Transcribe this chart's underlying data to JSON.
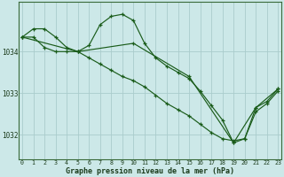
{
  "title": "Graphe pression niveau de la mer (hPa)",
  "bg_color": "#cce8e8",
  "grid_color": "#aacccc",
  "line_color": "#1a5c1a",
  "x_ticks": [
    0,
    1,
    2,
    3,
    4,
    5,
    6,
    7,
    8,
    9,
    10,
    11,
    12,
    13,
    14,
    15,
    16,
    17,
    18,
    19,
    20,
    21,
    22,
    23
  ],
  "y_ticks": [
    1032,
    1033,
    1034
  ],
  "ylim": [
    1031.4,
    1035.2
  ],
  "xlim": [
    -0.3,
    23.3
  ],
  "series": [
    {
      "x": [
        0,
        1,
        2,
        3,
        4,
        5,
        6,
        7,
        8,
        9,
        10,
        11,
        12,
        13,
        14,
        15,
        16,
        17,
        18,
        19,
        20,
        21,
        22,
        23
      ],
      "y": [
        1034.35,
        1034.55,
        1034.55,
        1034.35,
        1034.1,
        1034.0,
        1034.15,
        1034.65,
        1034.85,
        1034.9,
        1034.75,
        1034.2,
        1033.85,
        1033.65,
        1033.5,
        1033.35,
        1033.05,
        1032.7,
        1032.35,
        1031.8,
        1031.9,
        1032.65,
        1032.8,
        1033.1
      ]
    },
    {
      "x": [
        0,
        1,
        2,
        3,
        4,
        5,
        6,
        7,
        8,
        9,
        10,
        11,
        12,
        13,
        14,
        15,
        16,
        17,
        18,
        19,
        20,
        21,
        22,
        23
      ],
      "y": [
        1034.35,
        1034.35,
        1034.1,
        1034.0,
        1034.0,
        1034.0,
        1033.85,
        1033.7,
        1033.55,
        1033.4,
        1033.3,
        1033.15,
        1032.95,
        1032.75,
        1032.6,
        1032.45,
        1032.25,
        1032.05,
        1031.9,
        1031.85,
        1031.9,
        1032.55,
        1032.75,
        1033.05
      ]
    },
    {
      "x": [
        0,
        5,
        10,
        15,
        19,
        21,
        23
      ],
      "y": [
        1034.35,
        1034.0,
        1034.2,
        1033.4,
        1031.8,
        1032.65,
        1033.1
      ]
    }
  ]
}
